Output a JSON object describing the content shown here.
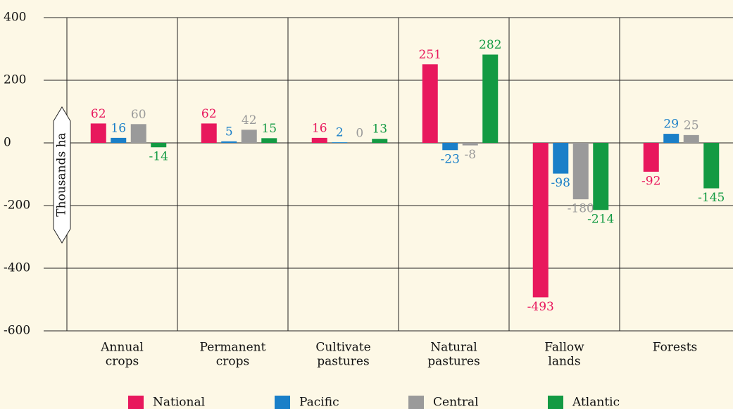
{
  "chart_data": {
    "type": "bar",
    "y_label": "Thousands ha",
    "categories": [
      [
        "Annual",
        "crops"
      ],
      [
        "Permanent",
        "crops"
      ],
      [
        "Cultivate",
        "pastures"
      ],
      [
        "Natural",
        "pastures"
      ],
      [
        "Fallow",
        "lands"
      ],
      [
        "Forests"
      ]
    ],
    "series": [
      {
        "name": "National",
        "color": "#e8185d",
        "values": [
          62,
          62,
          16,
          251,
          -493,
          -92
        ]
      },
      {
        "name": "Pacific",
        "color": "#1a7fc8",
        "values": [
          16,
          5,
          2,
          -23,
          -98,
          29
        ]
      },
      {
        "name": "Central",
        "color": "#9a9a9a",
        "values": [
          60,
          42,
          0,
          -8,
          -180,
          25
        ]
      },
      {
        "name": "Atlantic",
        "color": "#139a43",
        "values": [
          -14,
          15,
          13,
          282,
          -214,
          -145
        ]
      }
    ],
    "ylim": [
      -600,
      400
    ],
    "yticks": [
      -600,
      -400,
      -200,
      0,
      200,
      400
    ],
    "grid": true
  }
}
